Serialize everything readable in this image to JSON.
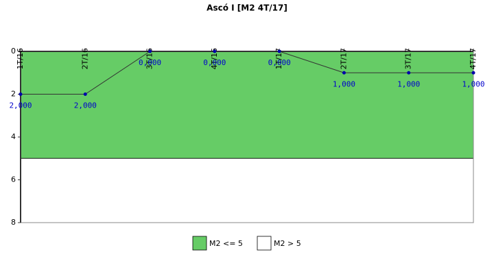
{
  "chart_data": {
    "type": "line",
    "title": "Ascó I [M2 4T/17]",
    "categories": [
      "1T/16",
      "2T/16",
      "3T/16",
      "4T/16",
      "1T/17",
      "2T/17",
      "3T/17",
      "4T/17"
    ],
    "values": [
      2,
      2,
      0,
      0,
      0,
      1,
      1,
      1
    ],
    "value_labels": [
      "2,000",
      "2,000",
      "0,000",
      "0,000",
      "0,000",
      "1,000",
      "1,000",
      "1,000"
    ],
    "color": "#333333",
    "marker_color": "#0000aa",
    "ylim": [
      0,
      8
    ],
    "y_inverted": true,
    "yticks": [
      0,
      2,
      4,
      6,
      8
    ],
    "bands": [
      {
        "name": "M2 <= 5",
        "from": 0,
        "to": 5,
        "color": "#66cc66"
      },
      {
        "name": "M2 > 5",
        "from": 5,
        "to": 8,
        "color": "#ffffff"
      }
    ]
  }
}
